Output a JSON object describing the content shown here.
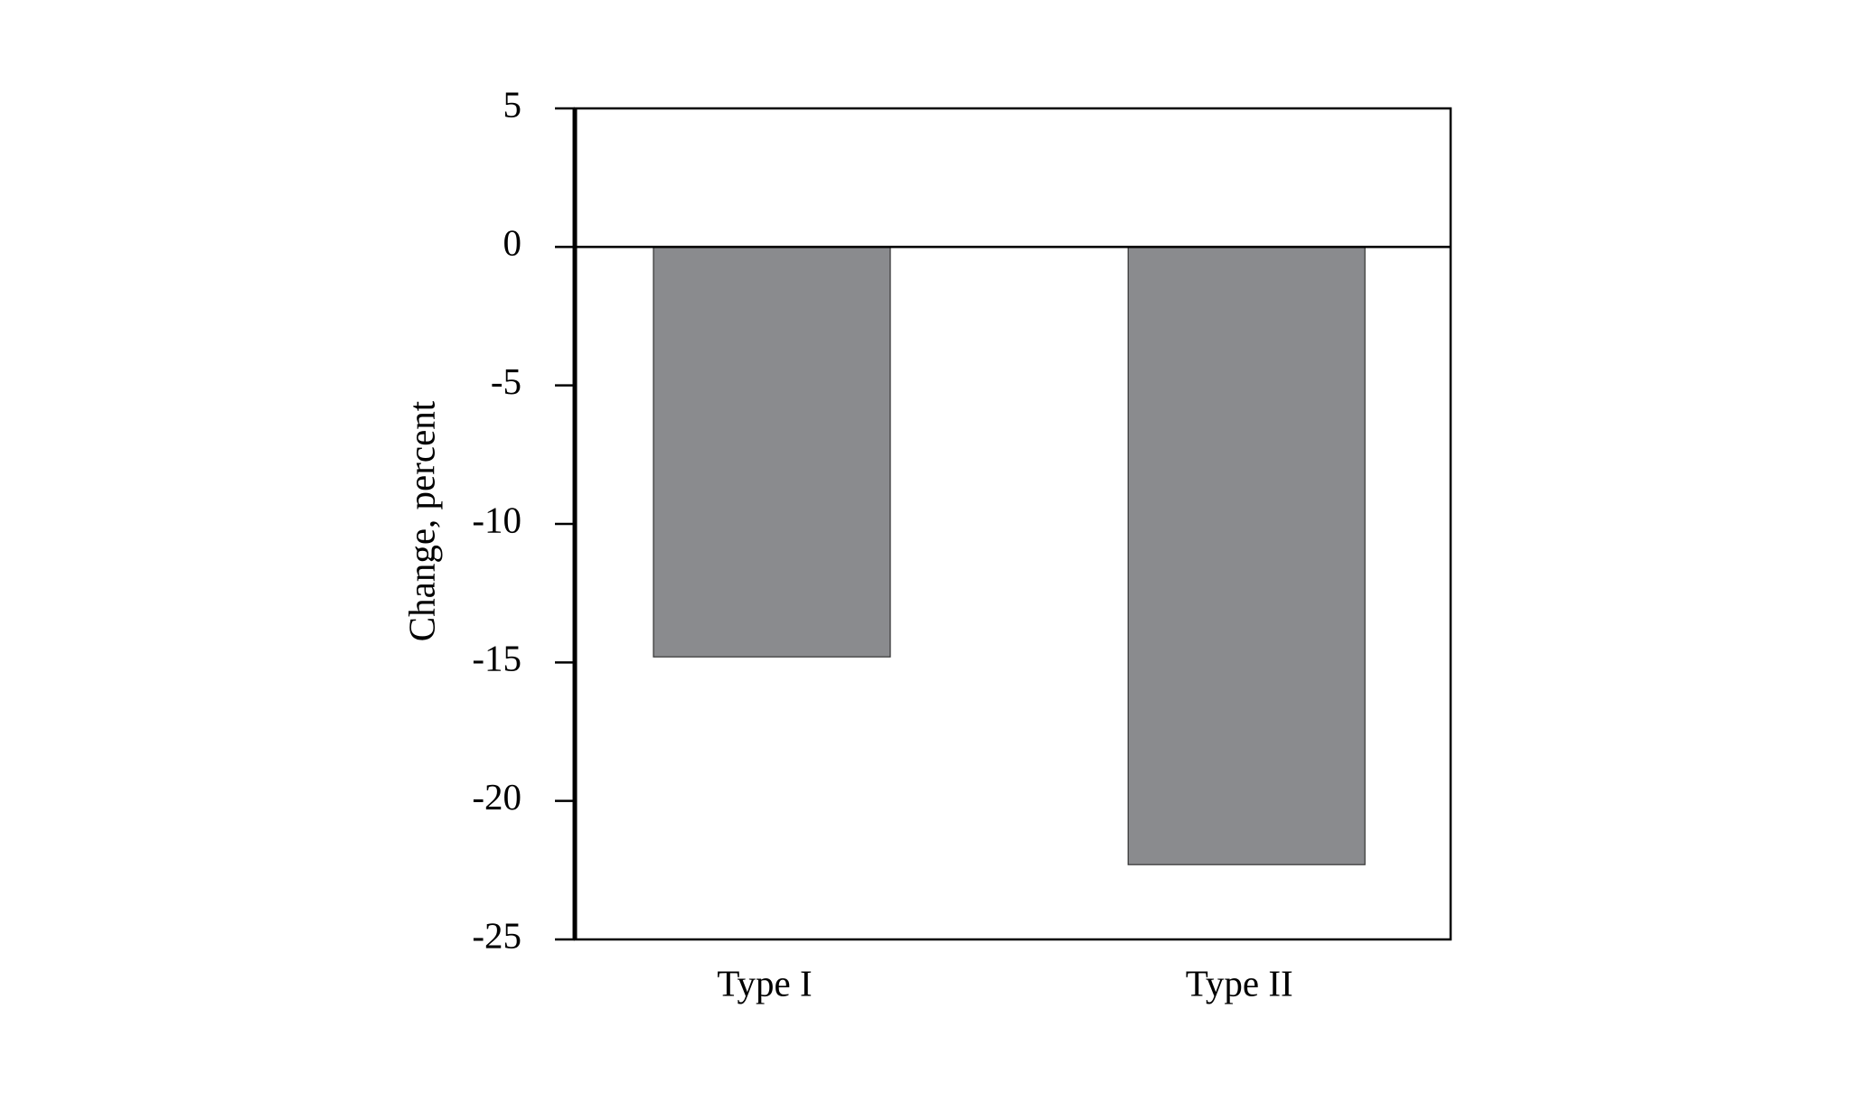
{
  "chart_data": {
    "type": "bar",
    "y_label": "Change, percent",
    "categories": [
      "Type I",
      "Type II"
    ],
    "values": [
      -14.8,
      -22.3
    ],
    "color": "#8a8b8e",
    "ylim": [
      -25,
      5
    ],
    "yticks": [
      -25,
      -20,
      -15,
      -10,
      -5,
      0,
      5
    ],
    "grid": false
  }
}
